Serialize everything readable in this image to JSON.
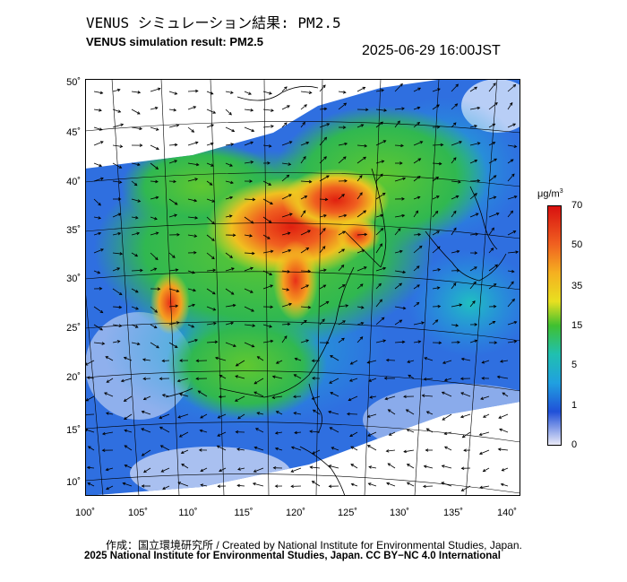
{
  "header": {
    "title_jp": "VENUS シミュレーション結果: PM2.5",
    "title_en": "VENUS simulation result: PM2.5",
    "timestamp": "2025-06-29 16:00JST"
  },
  "map": {
    "lat_labels": [
      "50˚",
      "45˚",
      "40˚",
      "35˚",
      "30˚",
      "25˚",
      "20˚",
      "15˚",
      "10˚"
    ],
    "lon_labels": [
      "100˚",
      "105˚",
      "110˚",
      "115˚",
      "120˚",
      "125˚",
      "130˚",
      "135˚",
      "140˚"
    ],
    "lat_ticks": [
      50,
      45,
      40,
      35,
      30,
      25,
      20,
      15,
      10
    ],
    "lon_ticks": [
      100,
      105,
      110,
      115,
      120,
      125,
      130,
      135,
      140
    ],
    "variable": "PM2.5"
  },
  "colorbar": {
    "unit_base": "μg/m",
    "unit_exp": "3",
    "labels": [
      "70",
      "50",
      "35",
      "15",
      "5",
      "1",
      "0"
    ],
    "colors": [
      "#e83018",
      "#f5a020",
      "#f0e020",
      "#30c030",
      "#20b0e0",
      "#2050d8",
      "#e8e8f8"
    ]
  },
  "footer": {
    "credit": "作成：国立環境研究所 / Created by National Institute for Environmental Studies, Japan.",
    "copyright": "2025 National Institute for Environmental Studies, Japan. CC BY−NC 4.0 International"
  }
}
